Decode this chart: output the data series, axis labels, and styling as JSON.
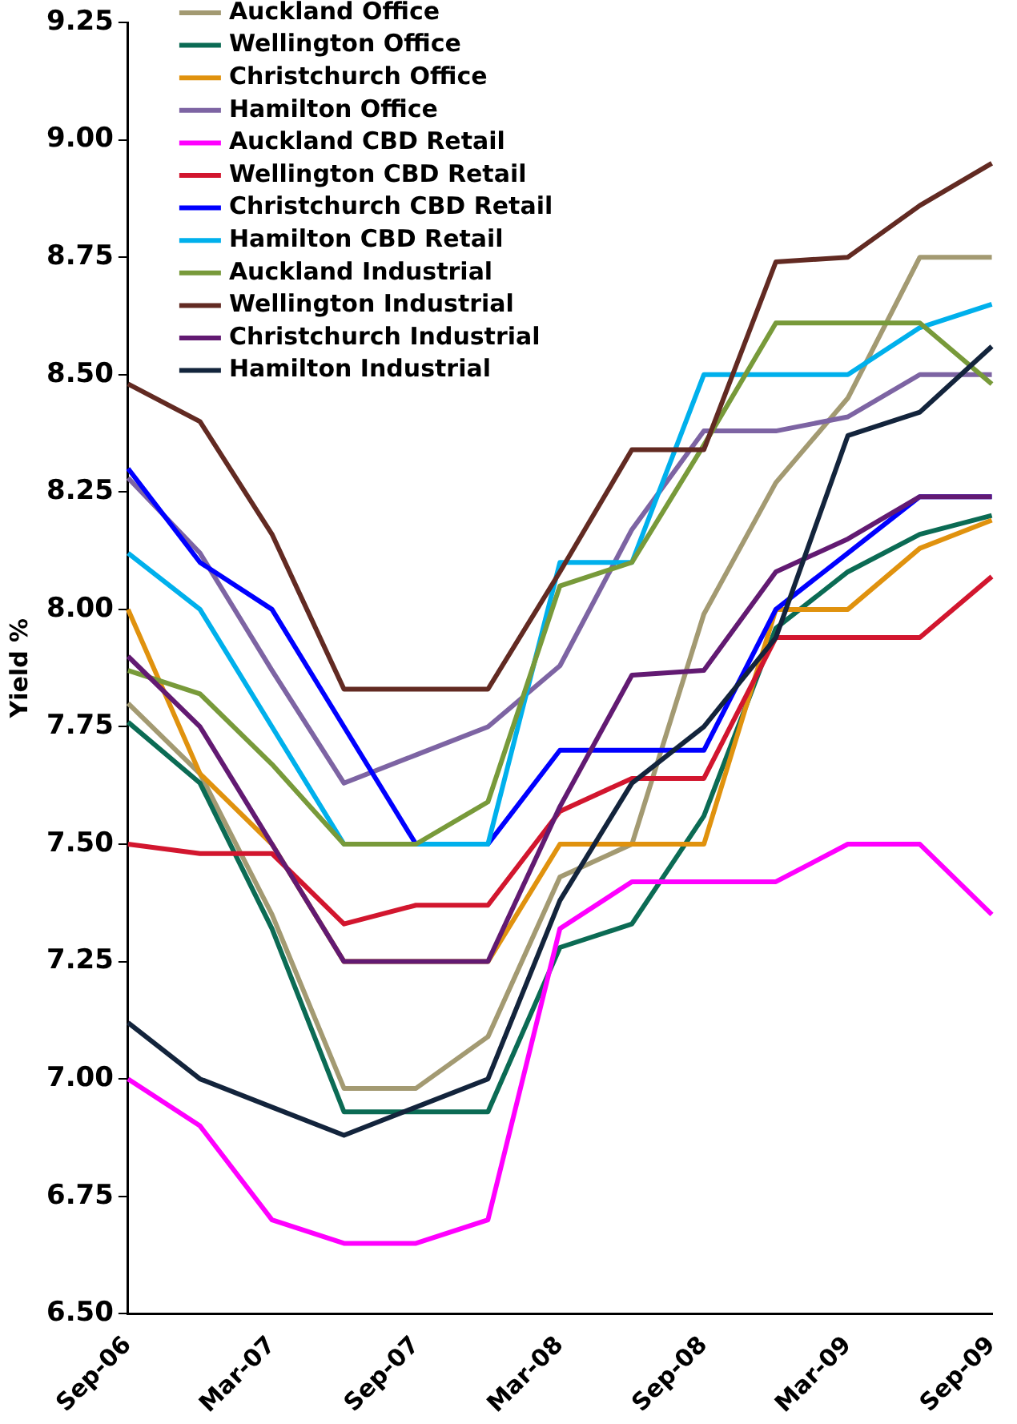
{
  "chart_data": {
    "type": "line",
    "ylabel": "Yield %",
    "categories": [
      "Sep-06",
      null,
      "Mar-07",
      null,
      "Sep-07",
      null,
      "Mar-08",
      null,
      "Sep-08",
      null,
      "Mar-09",
      null,
      "Sep-09"
    ],
    "series": [
      {
        "name": "Auckland Office",
        "color": "#a39a72",
        "values": [
          7.8,
          7.65,
          7.35,
          6.98,
          6.98,
          7.09,
          7.43,
          7.5,
          7.99,
          8.27,
          8.45,
          8.75,
          8.75
        ]
      },
      {
        "name": "Wellington Office",
        "color": "#0b6b54",
        "values": [
          7.76,
          7.63,
          7.32,
          6.93,
          6.93,
          6.93,
          7.28,
          7.33,
          7.56,
          7.96,
          8.08,
          8.16,
          8.2
        ]
      },
      {
        "name": "Christchurch Office",
        "color": "#e0920e",
        "values": [
          8.0,
          7.65,
          7.5,
          7.25,
          7.25,
          7.25,
          7.5,
          7.5,
          7.5,
          8.0,
          8.0,
          8.13,
          8.19
        ]
      },
      {
        "name": "Hamilton Office",
        "color": "#7d64a3",
        "values": [
          8.28,
          8.12,
          7.87,
          7.63,
          7.69,
          7.75,
          7.88,
          8.17,
          8.38,
          8.38,
          8.41,
          8.5,
          8.5
        ]
      },
      {
        "name": "Auckland CBD Retail",
        "color": "#ff00ff",
        "values": [
          7.0,
          6.9,
          6.7,
          6.65,
          6.65,
          6.7,
          7.32,
          7.42,
          7.42,
          7.42,
          7.5,
          7.5,
          7.35
        ]
      },
      {
        "name": "Wellington CBD Retail",
        "color": "#d2162e",
        "values": [
          7.5,
          7.48,
          7.48,
          7.33,
          7.37,
          7.37,
          7.57,
          7.64,
          7.64,
          7.94,
          7.94,
          7.94,
          8.07
        ]
      },
      {
        "name": "Christchurch CBD Retail",
        "color": "#0000ff",
        "values": [
          8.3,
          8.1,
          8.0,
          7.75,
          7.5,
          7.5,
          7.7,
          7.7,
          7.7,
          8.0,
          8.12,
          8.24,
          8.24
        ]
      },
      {
        "name": "Hamilton CBD Retail",
        "color": "#00b0ec",
        "values": [
          8.12,
          8.0,
          7.75,
          7.5,
          7.5,
          7.5,
          8.1,
          8.1,
          8.5,
          8.5,
          8.5,
          8.6,
          8.65
        ]
      },
      {
        "name": "Auckland Industrial",
        "color": "#789a3a",
        "values": [
          7.87,
          7.82,
          7.67,
          7.5,
          7.5,
          7.59,
          8.05,
          8.1,
          8.35,
          8.61,
          8.61,
          8.61,
          8.48
        ]
      },
      {
        "name": "Wellington Industrial",
        "color": "#622a22",
        "values": [
          8.48,
          8.4,
          8.16,
          7.83,
          7.83,
          7.83,
          8.08,
          8.34,
          8.34,
          8.74,
          8.75,
          8.86,
          8.95
        ]
      },
      {
        "name": "Christchurch Industrial",
        "color": "#621a72",
        "values": [
          7.9,
          7.75,
          7.5,
          7.25,
          7.25,
          7.25,
          7.58,
          7.86,
          7.87,
          8.08,
          8.15,
          8.24,
          8.24
        ]
      },
      {
        "name": "Hamilton Industrial",
        "color": "#13243c",
        "values": [
          7.12,
          7.0,
          6.94,
          6.88,
          6.94,
          7.0,
          7.38,
          7.63,
          7.75,
          7.94,
          8.37,
          8.42,
          8.56
        ]
      }
    ],
    "ylim": [
      6.5,
      9.25
    ],
    "yticks": [
      {
        "value": 6.5,
        "label": "6.50"
      },
      {
        "value": 6.75,
        "label": "6.75"
      },
      {
        "value": 7,
        "label": "7.00"
      },
      {
        "value": 7.25,
        "label": "7.25"
      },
      {
        "value": 7.5,
        "label": "7.50"
      },
      {
        "value": 7.75,
        "label": "7.75"
      },
      {
        "value": 8,
        "label": "8.00"
      },
      {
        "value": 8.25,
        "label": "8.25"
      },
      {
        "value": 8.5,
        "label": "8.50"
      },
      {
        "value": 8.75,
        "label": "8.75"
      },
      {
        "value": 9,
        "label": "9.00"
      },
      {
        "value": 9.25,
        "label": "9.25"
      }
    ],
    "grid": false,
    "legend": "top left",
    "marker": "none",
    "line_style": "solid"
  }
}
